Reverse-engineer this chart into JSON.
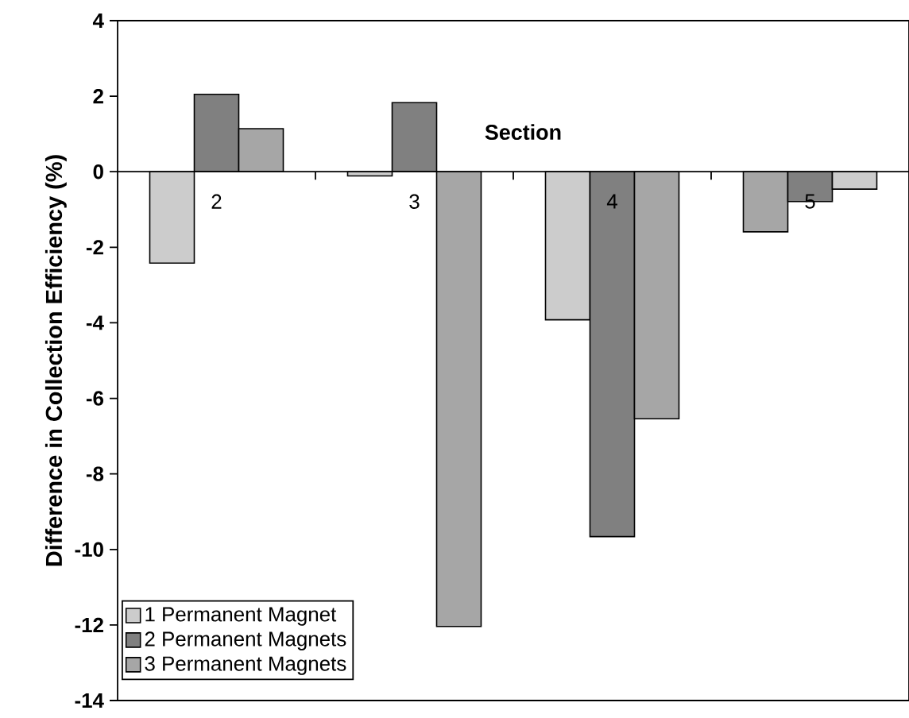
{
  "chart_data": {
    "type": "bar",
    "xlabel": "Section",
    "ylabel": "Difference in Collection Efficiency (%)",
    "categories": [
      "2",
      "3",
      "4",
      "5"
    ],
    "series": [
      {
        "name": "1 Permanent Magnet",
        "color": "#cccccc",
        "colors": [
          "#cccccc",
          "#cccccc",
          "#cccccc",
          "#a6a6a6"
        ],
        "values": [
          -2.42,
          -0.11,
          -3.92,
          -1.59
        ]
      },
      {
        "name": "2 Permanent Magnets",
        "color": "#808080",
        "values": [
          2.05,
          1.83,
          -9.66,
          -0.79
        ]
      },
      {
        "name": "3 Permanent Magnets",
        "color": "#a6a6a6",
        "colors": [
          "#a6a6a6",
          "#a6a6a6",
          "#a6a6a6",
          "#cccccc"
        ],
        "values": [
          1.14,
          -12.04,
          -6.54,
          -0.46
        ]
      }
    ],
    "ylim": [
      -14,
      4
    ],
    "yticks": [
      -14,
      -12,
      -10,
      -8,
      -6,
      -4,
      -2,
      0,
      2,
      4
    ],
    "legend": "bottom left"
  }
}
